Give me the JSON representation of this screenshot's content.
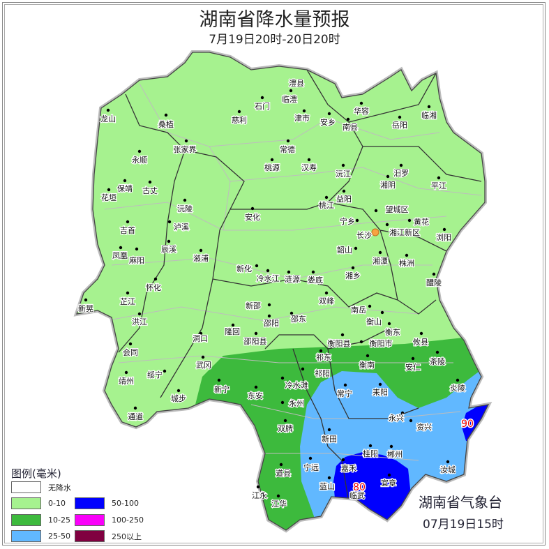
{
  "header": {
    "title": "湖南省降水量预报",
    "subtitle": "7月19日20时-20日20时"
  },
  "legend": {
    "title": "图例(毫米)",
    "items": [
      {
        "label": "无降水",
        "color": "#ffffff"
      },
      {
        "label": "0-10",
        "color": "#a6f28f"
      },
      {
        "label": "10-25",
        "color": "#3dba3d"
      },
      {
        "label": "25-50",
        "color": "#61b8ff"
      },
      {
        "label": "50-100",
        "color": "#0000fe"
      },
      {
        "label": "100-250",
        "color": "#fa00fa"
      },
      {
        "label": "250以上",
        "color": "#800040"
      }
    ]
  },
  "map": {
    "cities": [
      "龙山",
      "桑植",
      "慈利",
      "石门",
      "澧县",
      "临澧",
      "津市",
      "张家界",
      "永顺",
      "常德",
      "桃源",
      "汉寿",
      "保靖",
      "古丈",
      "花垣",
      "沅陵",
      "安化",
      "泸溪",
      "吉首",
      "辰溪",
      "溆浦",
      "凤凰",
      "麻阳",
      "华容",
      "安乡",
      "南县",
      "岳阳",
      "临湘",
      "沅江",
      "汨罗",
      "湘阴",
      "平江",
      "益阳",
      "桃江",
      "望城区",
      "宁乡",
      "黄花",
      "湘江新区",
      "长沙",
      "浏阳",
      "韶山",
      "湘潭",
      "株洲",
      "湘乡",
      "醴陵",
      "新化",
      "冷水江",
      "涟源",
      "娄底",
      "双峰",
      "新邵",
      "邵阳",
      "邵东",
      "南岳",
      "衡山",
      "衡东",
      "隆回",
      "邵阳县",
      "洞口",
      "衡阳县",
      "衡阳市",
      "攸县",
      "祁东",
      "衡南",
      "安仁",
      "茶陵",
      "武冈",
      "祁阳",
      "新宁",
      "冷水滩",
      "常宁",
      "耒阳",
      "炎陵",
      "东安",
      "永州",
      "永兴",
      "资兴",
      "双牌",
      "新田",
      "桂阳",
      "郴州",
      "宁远",
      "嘉禾",
      "汝城",
      "道县",
      "蓝山",
      "临武",
      "宜章",
      "江永",
      "江华",
      "会同",
      "靖州",
      "通道",
      "绥宁",
      "城步",
      "新晃",
      "芷江",
      "洪江",
      "怀化"
    ],
    "capital": "长沙",
    "max_values": [
      "80",
      "90"
    ]
  },
  "footer": {
    "agency": "湖南省气象台",
    "issued": "07月19日15时"
  }
}
